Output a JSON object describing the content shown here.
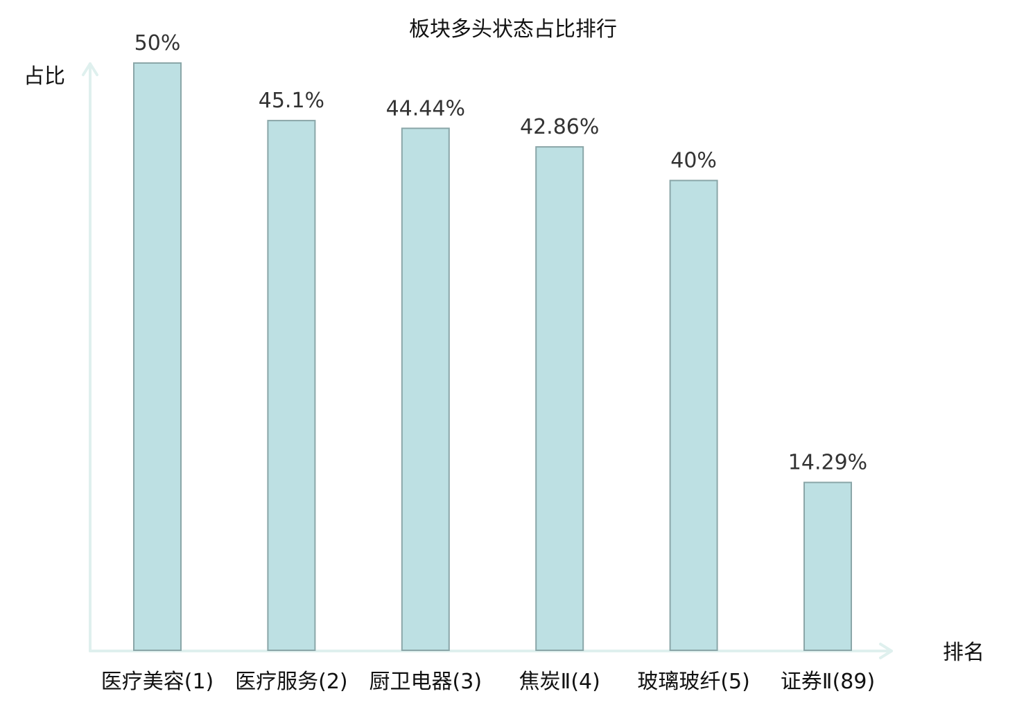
{
  "chart_data": {
    "type": "bar",
    "title": "板块多头状态占比排行",
    "ylabel": "占比",
    "xlabel": "排名",
    "categories": [
      "医疗美容(1)",
      "医疗服务(2)",
      "厨卫电器(3)",
      "焦炭Ⅱ(4)",
      "玻璃玻纤(5)",
      "证券Ⅱ(89)"
    ],
    "values": [
      50,
      45.1,
      44.44,
      42.86,
      40,
      14.29
    ],
    "value_labels": [
      "50%",
      "45.1%",
      "44.44%",
      "42.86%",
      "40%",
      "14.29%"
    ],
    "highlight_index": 5,
    "ylim": [
      0,
      50
    ],
    "grid": false,
    "colors": {
      "bar_fill": "#bde0e3",
      "bar_stroke": "#8aa6a8",
      "axis": "#dff0ee",
      "highlight_text": "#e0161b",
      "text": "#111111",
      "value_text": "#333333"
    }
  }
}
